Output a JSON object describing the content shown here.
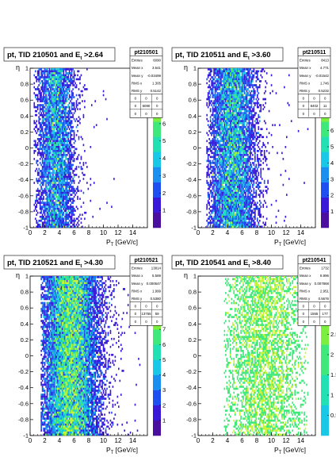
{
  "chart_data": [
    {
      "type": "heatmap",
      "title": "pt, TID 210501 and E",
      "title_sub": "t",
      "title_cut": " >2.64",
      "stats_box": {
        "name": "pt210501",
        "rows": [
          [
            "Entries",
            "6090"
          ],
          [
            "Mean x",
            "3.541"
          ],
          [
            "Mean y",
            "-0.03499"
          ],
          [
            "RMS x",
            "1.305"
          ],
          [
            "RMS y",
            "0.5142"
          ]
        ],
        "grid": [
          [
            "0",
            "0",
            "0"
          ],
          [
            "0",
            "6090",
            "0"
          ],
          [
            "0",
            "0",
            "0"
          ]
        ]
      },
      "xlabel": "P",
      "xlabel_sub": "T",
      "xlabel_unit": " [GeV/c]",
      "ylabel": "η",
      "xlim": [
        0,
        16
      ],
      "ylim": [
        -1,
        1
      ],
      "x_ticks": [
        "0",
        "2",
        "4",
        "6",
        "8",
        "10",
        "12",
        "14"
      ],
      "y_ticks": [
        "-1",
        "-0.8",
        "-0.6",
        "-0.4",
        "-0.2",
        "0",
        "0.2",
        "0.4",
        "0.6",
        "0.8",
        "1"
      ],
      "z_ticks": [
        "1",
        "2",
        "3",
        "4",
        "5",
        "6"
      ],
      "zlim": [
        0,
        7
      ],
      "distribution": {
        "x_center": 3.5,
        "x_width": 1.3,
        "x_min": 0.5,
        "x_max": 14,
        "density": 6
      }
    },
    {
      "type": "heatmap",
      "title": "pt, TID 210511 and E",
      "title_sub": "t",
      "title_cut": " >3.60",
      "stats_box": {
        "name": "pt210511",
        "rows": [
          [
            "Entries",
            "8413"
          ],
          [
            "Mean x",
            "4.771"
          ],
          [
            "Mean y",
            "-0.01542"
          ],
          [
            "RMS x",
            "1.746"
          ],
          [
            "RMS y",
            "0.5232"
          ]
        ],
        "grid": [
          [
            "0",
            "0",
            "0"
          ],
          [
            "0",
            "8402",
            "11"
          ],
          [
            "0",
            "0",
            "0"
          ]
        ]
      },
      "xlabel": "P",
      "xlabel_sub": "T",
      "xlabel_unit": " [GeV/c]",
      "ylabel": "η",
      "xlim": [
        0,
        16
      ],
      "ylim": [
        -1,
        1
      ],
      "x_ticks": [
        "0",
        "2",
        "4",
        "6",
        "8",
        "10",
        "12",
        "14"
      ],
      "y_ticks": [
        "-1",
        "-0.8",
        "-0.6",
        "-0.4",
        "-0.2",
        "0",
        "0.2",
        "0.4",
        "0.6",
        "0.8",
        "1"
      ],
      "z_ticks": [
        "1",
        "2",
        "3",
        "4",
        "5",
        "6"
      ],
      "zlim": [
        0,
        7.5
      ],
      "distribution": {
        "x_center": 4.7,
        "x_width": 1.7,
        "x_min": 1.2,
        "x_max": 15,
        "density": 7
      }
    },
    {
      "type": "heatmap",
      "title": "pt, TID 210521 and E",
      "title_sub": "t",
      "title_cut": " >4.30",
      "stats_box": {
        "name": "pt210521",
        "rows": [
          [
            "Entries",
            "13814"
          ],
          [
            "Mean x",
            "5.589"
          ],
          [
            "Mean y",
            "0.000647"
          ],
          [
            "RMS x",
            "1.999"
          ],
          [
            "RMS y",
            "0.5380"
          ]
        ],
        "grid": [
          [
            "0",
            "0",
            "0"
          ],
          [
            "0",
            "13755",
            "59"
          ],
          [
            "0",
            "0",
            "0"
          ]
        ]
      },
      "xlabel": "P",
      "xlabel_sub": "T",
      "xlabel_unit": " [GeV/c]",
      "ylabel": "η",
      "xlim": [
        0,
        16
      ],
      "ylim": [
        -1,
        1
      ],
      "x_ticks": [
        "0",
        "2",
        "4",
        "6",
        "8",
        "10",
        "12",
        "14"
      ],
      "y_ticks": [
        "-1",
        "-0.8",
        "-0.6",
        "-0.4",
        "-0.2",
        "0",
        "0.2",
        "0.4",
        "0.6",
        "0.8",
        "1"
      ],
      "z_ticks": [
        "1",
        "2",
        "3",
        "4",
        "5",
        "6",
        "7"
      ],
      "zlim": [
        0,
        8
      ],
      "distribution": {
        "x_center": 5.5,
        "x_width": 2.0,
        "x_min": 1.5,
        "x_max": 15,
        "density": 11
      }
    },
    {
      "type": "heatmap",
      "title": "pt, TID 210541 and E",
      "title_sub": "t",
      "title_cut": " >8.40",
      "stats_box": {
        "name": "pt210541",
        "rows": [
          [
            "Entries",
            "1732"
          ],
          [
            "Mean x",
            "8.996"
          ],
          [
            "Mean y",
            "0.007868"
          ],
          [
            "RMS x",
            "2.951"
          ],
          [
            "RMS y",
            "0.5676"
          ]
        ],
        "grid": [
          [
            "0",
            "0",
            "0"
          ],
          [
            "0",
            "1555",
            "177"
          ],
          [
            "0",
            "0",
            "0"
          ]
        ]
      },
      "xlabel": "P",
      "xlabel_sub": "T",
      "xlabel_unit": " [GeV/c]",
      "ylabel": "η",
      "xlim": [
        0,
        16
      ],
      "ylim": [
        -1,
        1
      ],
      "x_ticks": [
        "0",
        "2",
        "4",
        "6",
        "8",
        "10",
        "12",
        "14"
      ],
      "y_ticks": [
        "-1",
        "-0.8",
        "-0.6",
        "-0.4",
        "-0.2",
        "0",
        "0.2",
        "0.4",
        "0.6",
        "0.8",
        "1"
      ],
      "z_ticks": [
        "0.5",
        "1",
        "1.5",
        "2",
        "2.5"
      ],
      "zlim": [
        0,
        3
      ],
      "distribution": {
        "x_center": 9.0,
        "x_width": 2.9,
        "x_min": 3.5,
        "x_max": 15,
        "density": 2
      }
    }
  ],
  "colors": {
    "palette": [
      "#4b0fa0",
      "#3a18d8",
      "#1f4ff0",
      "#1b8ff0",
      "#19c7e6",
      "#22e0b4",
      "#3fe87a",
      "#7cef3e",
      "#c8f43a"
    ],
    "frame": "#000000",
    "background": "#ffffff"
  }
}
